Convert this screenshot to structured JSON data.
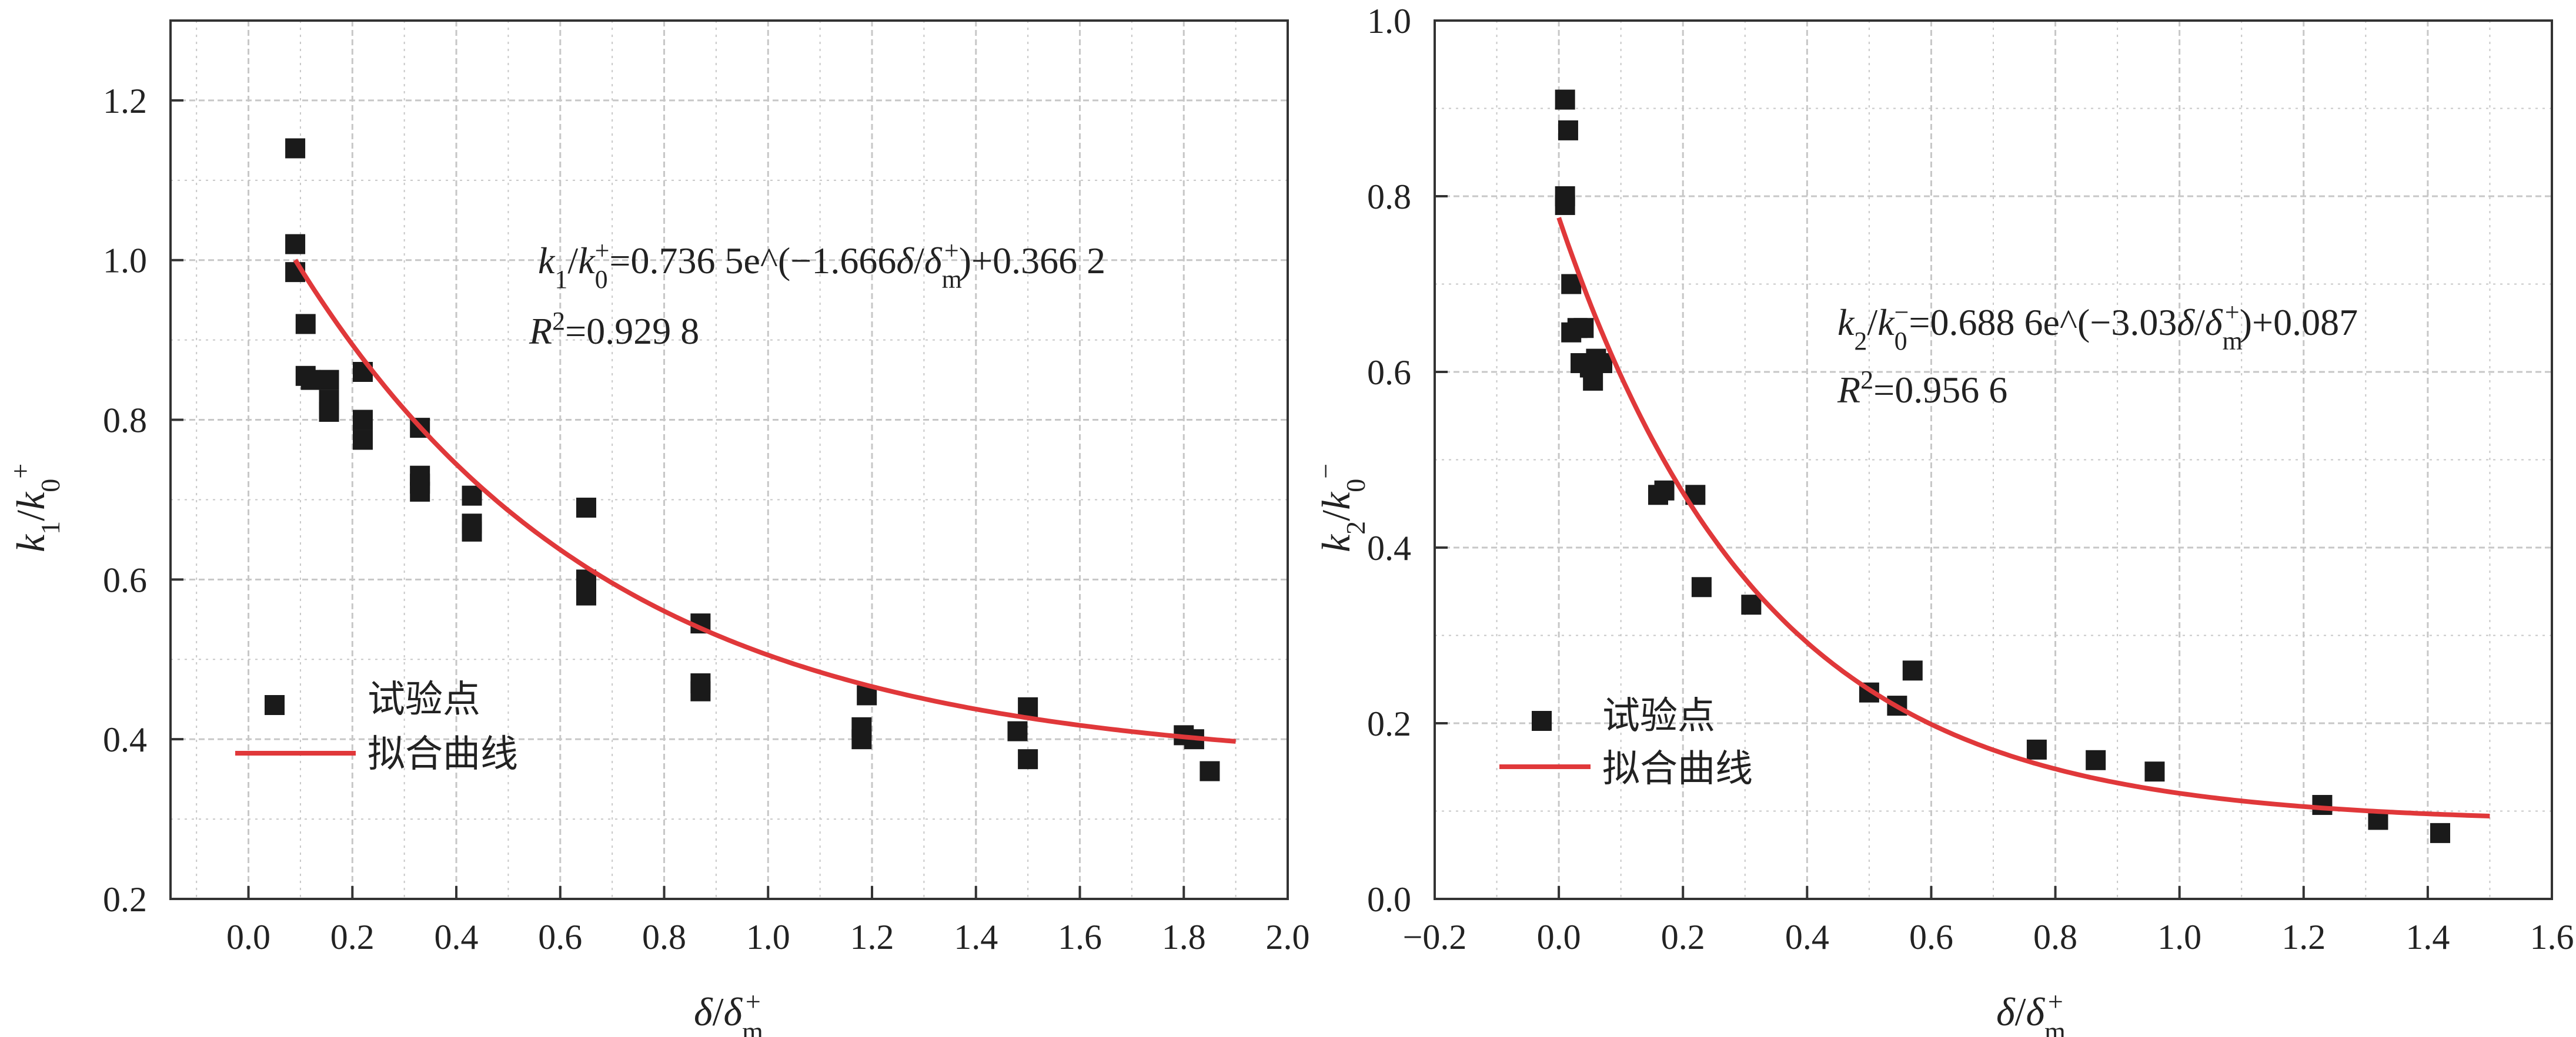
{
  "chart_data": [
    {
      "type": "scatter",
      "xlim": [
        -0.15,
        2.0
      ],
      "ylim": [
        0.2,
        1.3
      ],
      "xticks": [
        "0.0",
        "0.2",
        "0.4",
        "0.6",
        "0.8",
        "1.0",
        "1.2",
        "1.4",
        "1.6",
        "1.8",
        "2.0"
      ],
      "yticks": [
        "0.2",
        "0.4",
        "0.6",
        "0.8",
        "1.0",
        "1.2"
      ],
      "xlabel": "δ/δm+",
      "ylabel": "k1/k0+",
      "grid": true,
      "legend_position": "bottom-left",
      "legend": {
        "points": "试验点",
        "curve": "拟合曲线"
      },
      "equation": {
        "main": "k1/k0+=0.736 5e^(−1.666δ/δm+)+0.366 2",
        "r2": "R2=0.929 8"
      },
      "series": [
        {
          "name": "试验点",
          "points": [
            [
              0.09,
              1.14
            ],
            [
              0.09,
              1.02
            ],
            [
              0.09,
              0.985
            ],
            [
              0.11,
              0.92
            ],
            [
              0.11,
              0.855
            ],
            [
              0.12,
              0.85
            ],
            [
              0.155,
              0.85
            ],
            [
              0.155,
              0.825
            ],
            [
              0.155,
              0.81
            ],
            [
              0.22,
              0.86
            ],
            [
              0.22,
              0.8
            ],
            [
              0.22,
              0.775
            ],
            [
              0.33,
              0.79
            ],
            [
              0.33,
              0.73
            ],
            [
              0.33,
              0.72
            ],
            [
              0.33,
              0.71
            ],
            [
              0.43,
              0.705
            ],
            [
              0.43,
              0.67
            ],
            [
              0.43,
              0.66
            ],
            [
              0.65,
              0.69
            ],
            [
              0.65,
              0.6
            ],
            [
              0.65,
              0.59
            ],
            [
              0.65,
              0.58
            ],
            [
              0.87,
              0.545
            ],
            [
              0.87,
              0.47
            ],
            [
              0.87,
              0.46
            ],
            [
              1.18,
              0.415
            ],
            [
              1.18,
              0.4
            ],
            [
              1.19,
              0.455
            ],
            [
              1.48,
              0.41
            ],
            [
              1.5,
              0.44
            ],
            [
              1.5,
              0.375
            ],
            [
              1.8,
              0.405
            ],
            [
              1.82,
              0.4
            ],
            [
              1.85,
              0.36
            ]
          ]
        },
        {
          "name": "拟合曲线",
          "fit": {
            "a": 0.7365,
            "b": 1.666,
            "c": 0.3662,
            "x_range": [
              0.09,
              1.9
            ]
          }
        }
      ]
    },
    {
      "type": "scatter",
      "xlim": [
        -0.2,
        1.6
      ],
      "ylim": [
        0.0,
        1.0
      ],
      "xticks": [
        "−0.2",
        "0.0",
        "0.2",
        "0.4",
        "0.6",
        "0.8",
        "1.0",
        "1.2",
        "1.4",
        "1.6"
      ],
      "yticks": [
        "0.0",
        "0.2",
        "0.4",
        "0.6",
        "0.8",
        "1.0"
      ],
      "xlabel": "δ/δm+",
      "ylabel": "k2/k0−",
      "grid": true,
      "legend_position": "bottom-left",
      "legend": {
        "points": "试验点",
        "curve": "拟合曲线"
      },
      "equation": {
        "main": "k2/k0−=0.688 6e^(−3.03δ/δm+)+0.087",
        "r2": "R2=0.956 6"
      },
      "series": [
        {
          "name": "试验点",
          "points": [
            [
              0.01,
              0.91
            ],
            [
              0.015,
              0.875
            ],
            [
              0.01,
              0.8
            ],
            [
              0.01,
              0.79
            ],
            [
              0.02,
              0.7
            ],
            [
              0.02,
              0.645
            ],
            [
              0.03,
              0.65
            ],
            [
              0.04,
              0.65
            ],
            [
              0.035,
              0.61
            ],
            [
              0.05,
              0.605
            ],
            [
              0.055,
              0.59
            ],
            [
              0.06,
              0.615
            ],
            [
              0.07,
              0.61
            ],
            [
              0.16,
              0.46
            ],
            [
              0.17,
              0.465
            ],
            [
              0.22,
              0.46
            ],
            [
              0.23,
              0.355
            ],
            [
              0.31,
              0.335
            ],
            [
              0.5,
              0.235
            ],
            [
              0.545,
              0.22
            ],
            [
              0.57,
              0.26
            ],
            [
              0.77,
              0.17
            ],
            [
              0.865,
              0.158
            ],
            [
              0.96,
              0.145
            ],
            [
              1.23,
              0.107
            ],
            [
              1.32,
              0.09
            ],
            [
              1.42,
              0.075
            ]
          ]
        },
        {
          "name": "拟合曲线",
          "fit": {
            "a": 0.6886,
            "b": 3.03,
            "c": 0.087,
            "x_range": [
              0.0,
              1.5
            ]
          }
        }
      ]
    }
  ],
  "colors": {
    "fit_curve": "#e0383a",
    "points": "#1a1a1a",
    "grid": "#c7c7c7",
    "axis": "#333333"
  }
}
